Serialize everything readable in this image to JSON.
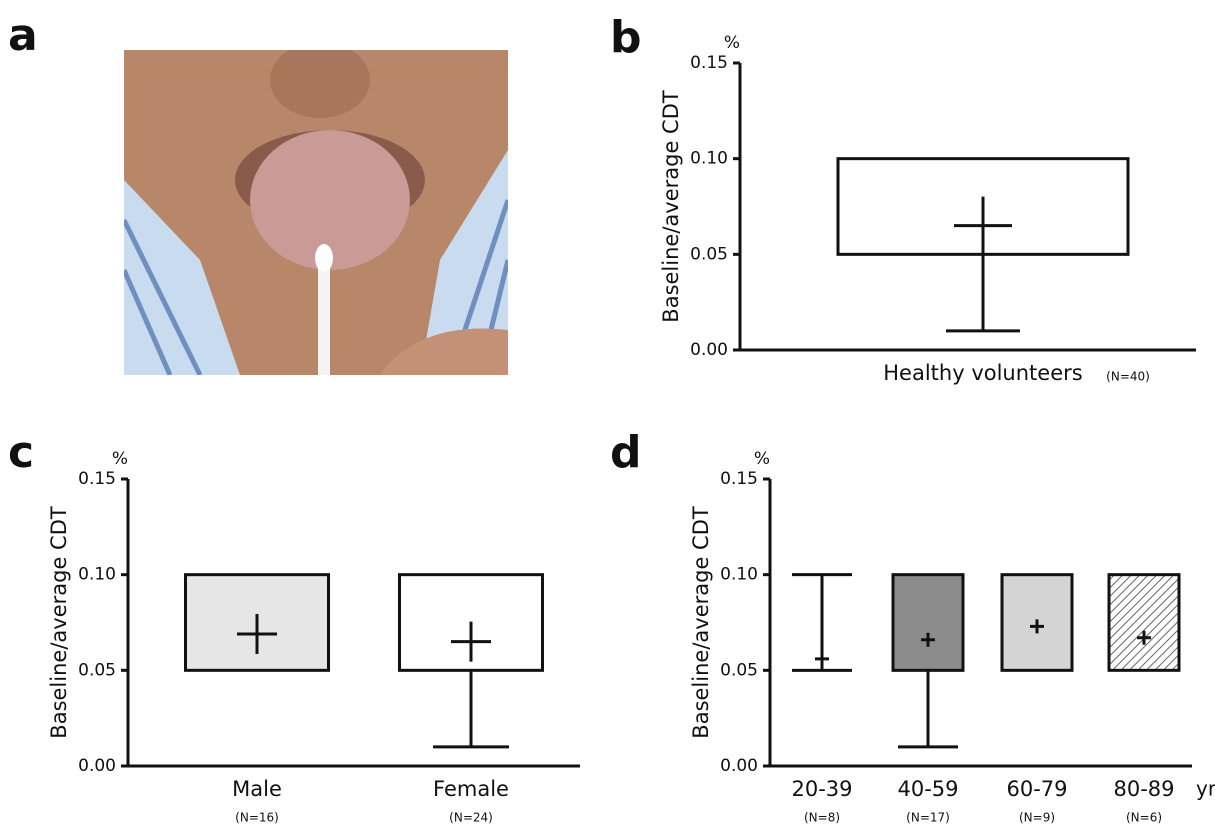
{
  "photo_panel": {
    "label": "a"
  },
  "chart_data": [
    {
      "type": "box",
      "panel": "b",
      "ylabel": "Baseline/average CDT",
      "yunit": "%",
      "ylim": [
        0,
        0.15
      ],
      "yticks": [
        {
          "value": 0,
          "label": "0.00"
        },
        0.05,
        {
          "value": 0.1,
          "label": "0.10"
        },
        0.15
      ],
      "categories": [
        "Healthy volunteers"
      ],
      "n_labels": [
        "(N=40)"
      ],
      "boxes": [
        {
          "box": [
            0.05,
            0.1
          ],
          "whisker": [
            0.01,
            0.08
          ],
          "mean": 0.065,
          "fill": "#ffffff"
        }
      ]
    },
    {
      "type": "box",
      "panel": "c",
      "ylabel": "Baseline/average CDT",
      "yunit": "%",
      "ylim": [
        0,
        0.15
      ],
      "yticks": [
        {
          "value": 0,
          "label": "0.00"
        },
        0.05,
        {
          "value": 0.1,
          "label": "0.10"
        },
        0.15
      ],
      "categories": [
        "Male",
        "Female"
      ],
      "n_labels": [
        "(N=16)",
        "(N=24)"
      ],
      "boxes": [
        {
          "box": [
            0.05,
            0.1
          ],
          "mean": 0.069,
          "fill": "#e6e6e6"
        },
        {
          "box": [
            0.05,
            0.1
          ],
          "whisker": [
            0.01,
            0.05
          ],
          "mean": 0.065,
          "fill": "#ffffff"
        }
      ]
    },
    {
      "type": "box",
      "panel": "d",
      "ylabel": "Baseline/average CDT",
      "yunit": "%",
      "xunit": "yr",
      "ylim": [
        0,
        0.15
      ],
      "yticks": [
        {
          "value": 0,
          "label": "0.00"
        },
        0.05,
        {
          "value": 0.1,
          "label": "0.10"
        },
        0.15
      ],
      "categories": [
        "20-39",
        "40-59",
        "60-79",
        "80-89"
      ],
      "n_labels": [
        "(N=8)",
        "(N=17)",
        "(N=9)",
        "(N=6)"
      ],
      "boxes": [
        {
          "whisker": [
            0.05,
            0.1
          ],
          "mean": 0.056
        },
        {
          "box": [
            0.05,
            0.1
          ],
          "whisker": [
            0.01,
            0.05
          ],
          "mean": 0.066,
          "fill": "#8c8c8c"
        },
        {
          "box": [
            0.05,
            0.1
          ],
          "mean": 0.073,
          "fill": "#d4d4d4"
        },
        {
          "box": [
            0.05,
            0.1
          ],
          "mean": 0.067,
          "fill": "hatch"
        }
      ]
    }
  ]
}
